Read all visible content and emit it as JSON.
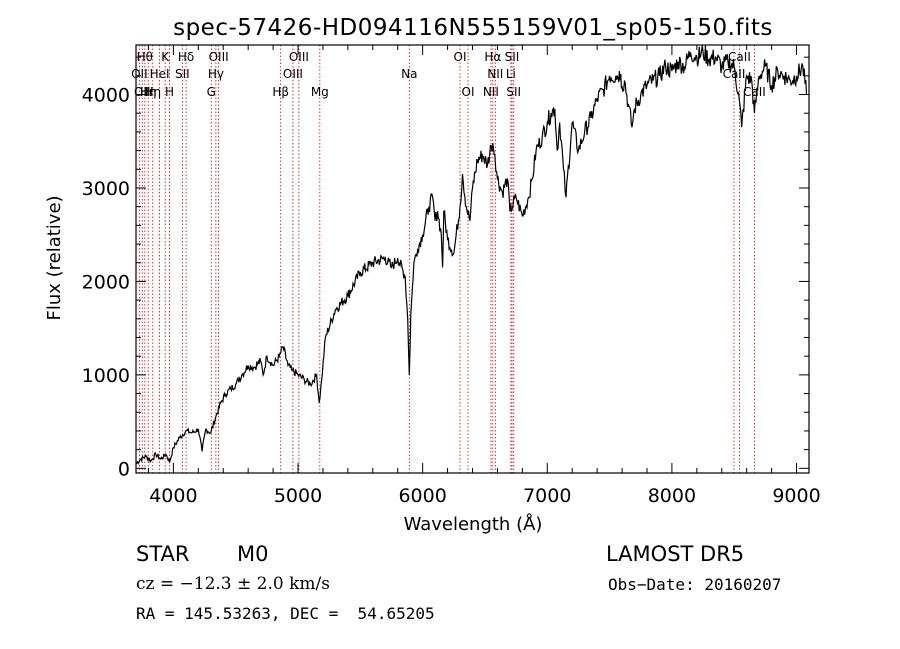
{
  "chart_data": {
    "type": "line",
    "title": "spec-57426-HD094116N555159V01_sp05-150.fits",
    "xlabel": "Wavelength (Å)",
    "ylabel": "Flux (relative)",
    "xlim": [
      3700,
      9100
    ],
    "ylim": [
      -50,
      4530
    ],
    "xticks": [
      4000,
      5000,
      6000,
      7000,
      8000,
      9000
    ],
    "yticks": [
      0,
      1000,
      2000,
      3000,
      4000
    ],
    "grid": false,
    "series": [
      {
        "x": [
          3700,
          3740,
          3780,
          3820,
          3860,
          3900,
          3940,
          3970,
          4000,
          4050,
          4100,
          4150,
          4200,
          4230,
          4260,
          4300,
          4340,
          4380,
          4420,
          4460,
          4500,
          4550,
          4600,
          4650,
          4700,
          4720,
          4750,
          4800,
          4850,
          4880,
          4920,
          4950,
          5000,
          5050,
          5100,
          5150,
          5170,
          5190,
          5220,
          5300,
          5400,
          5500,
          5600,
          5700,
          5750,
          5800,
          5860,
          5880,
          5893,
          5905,
          5930,
          5960,
          6000,
          6050,
          6080,
          6100,
          6120,
          6150,
          6160,
          6170,
          6200,
          6250,
          6300,
          6320,
          6350,
          6380,
          6400,
          6440,
          6480,
          6520,
          6550,
          6563,
          6580,
          6600,
          6640,
          6680,
          6700,
          6750,
          6800,
          6850,
          6880,
          6910,
          6960,
          7000,
          7030,
          7060,
          7080,
          7100,
          7130,
          7150,
          7200,
          7250,
          7300,
          7350,
          7400,
          7450,
          7500,
          7550,
          7590,
          7600,
          7620,
          7650,
          7680,
          7700,
          7750,
          7800,
          7850,
          7900,
          7950,
          8000,
          8050,
          8100,
          8150,
          8200,
          8250,
          8300,
          8350,
          8400,
          8450,
          8500,
          8540,
          8560,
          8600,
          8640,
          8662,
          8700,
          8750,
          8800,
          8850,
          8900,
          8950,
          9000,
          9050,
          9080
        ],
        "y": [
          50,
          100,
          130,
          80,
          150,
          100,
          150,
          70,
          220,
          330,
          400,
          380,
          420,
          180,
          420,
          380,
          550,
          700,
          800,
          850,
          900,
          1000,
          1100,
          1080,
          1150,
          1000,
          1200,
          1100,
          1200,
          1300,
          1100,
          1050,
          1000,
          950,
          900,
          1000,
          700,
          950,
          1400,
          1700,
          1850,
          2100,
          2200,
          2250,
          2150,
          2250,
          2050,
          1600,
          1000,
          1650,
          2200,
          2350,
          2500,
          2800,
          2900,
          2650,
          2750,
          2500,
          2150,
          2750,
          2450,
          2300,
          2800,
          3150,
          2800,
          2650,
          3000,
          3300,
          3350,
          3250,
          3450,
          3480,
          3350,
          3100,
          2950,
          3100,
          2750,
          2900,
          2700,
          2900,
          3100,
          3400,
          3550,
          3700,
          3800,
          3850,
          3400,
          3700,
          3200,
          2900,
          3700,
          3400,
          3600,
          3750,
          3950,
          4050,
          4200,
          4200,
          4220,
          4080,
          4150,
          3900,
          3650,
          3850,
          4000,
          4100,
          4150,
          4200,
          4300,
          4250,
          4350,
          4300,
          4450,
          4400,
          4450,
          4380,
          4400,
          4300,
          4350,
          4300,
          3950,
          3650,
          4200,
          4150,
          3800,
          4200,
          4300,
          4100,
          4250,
          4200,
          4150,
          4200,
          4300,
          4000
        ]
      }
    ],
    "lines": [
      {
        "w": 3727,
        "label": "OII",
        "row": 1
      },
      {
        "w": 3750,
        "label": "OII",
        "row": 2
      },
      {
        "w": 3771,
        "label": "Hθ",
        "row": 0
      },
      {
        "w": 3798,
        "label": "Hη",
        "row": 2
      },
      {
        "w": 3835,
        "label": "Hη",
        "row": 2
      },
      {
        "w": 3889,
        "label": "HeI",
        "row": 1
      },
      {
        "w": 3934,
        "label": "K",
        "row": 0
      },
      {
        "w": 3969,
        "label": "H",
        "row": 2
      },
      {
        "w": 4072,
        "label": "SII",
        "row": 1
      },
      {
        "w": 4102,
        "label": "Hδ",
        "row": 0
      },
      {
        "w": 4304,
        "label": "G",
        "row": 2
      },
      {
        "w": 4341,
        "label": "Hγ",
        "row": 1
      },
      {
        "w": 4363,
        "label": "OIII",
        "row": 0
      },
      {
        "w": 4861,
        "label": "Hβ",
        "row": 2
      },
      {
        "w": 4959,
        "label": "OIII",
        "row": 1
      },
      {
        "w": 5007,
        "label": "OIII",
        "row": 0
      },
      {
        "w": 5175,
        "label": "Mg",
        "row": 2
      },
      {
        "w": 5893,
        "label": "Na",
        "row": 1
      },
      {
        "w": 6300,
        "label": "OI",
        "row": 0
      },
      {
        "w": 6364,
        "label": "OI",
        "row": 2
      },
      {
        "w": 6548,
        "label": "NII",
        "row": 2
      },
      {
        "w": 6563,
        "label": "Hα",
        "row": 0
      },
      {
        "w": 6583,
        "label": "NII",
        "row": 1
      },
      {
        "w": 6708,
        "label": "Li",
        "row": 1
      },
      {
        "w": 6717,
        "label": "SII",
        "row": 0
      },
      {
        "w": 6731,
        "label": "SII",
        "row": 2
      },
      {
        "w": 8498,
        "label": "CaII",
        "row": 1
      },
      {
        "w": 8542,
        "label": "CaII",
        "row": 0
      },
      {
        "w": 8662,
        "label": "CaII",
        "row": 2
      }
    ]
  },
  "info": {
    "class": "STAR",
    "subclass": "M0",
    "survey": "LAMOST DR5",
    "cz": "cz = −12.3 ± 2.0 km/s",
    "obsdate": "Obs−Date: 20160207",
    "radec": "RA = 145.53263, DEC =  54.65205"
  },
  "colors": {
    "spectrum": "#000000",
    "line_marker": "#cc0000",
    "axes": "#000000"
  }
}
